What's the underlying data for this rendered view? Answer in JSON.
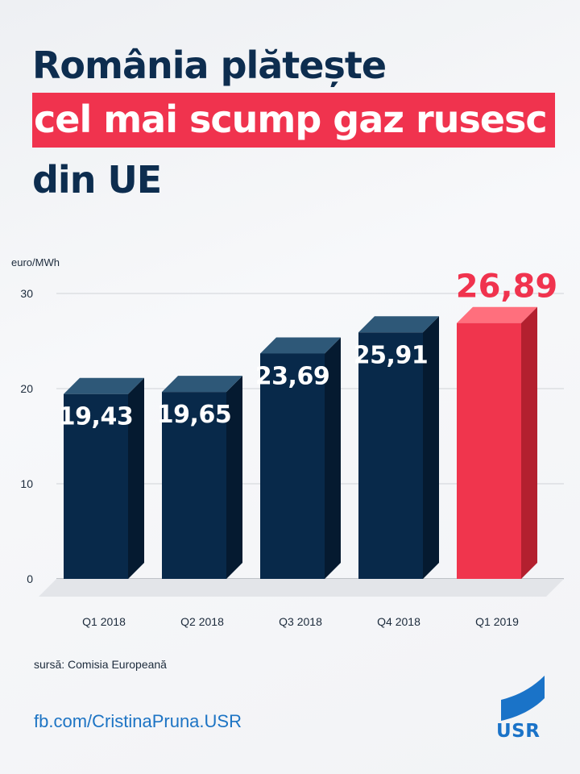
{
  "title": {
    "line1": "România plătește",
    "line2": "cel mai scump gaz rusesc",
    "line3": "din UE"
  },
  "chart_data": {
    "type": "bar",
    "ylabel": "euro/MWh",
    "ylim": [
      0,
      30
    ],
    "yticks": [
      "0",
      "10",
      "20",
      "30"
    ],
    "categories": [
      "Q1 2018",
      "Q2 2018",
      "Q3 2018",
      "Q4 2018",
      "Q1 2019"
    ],
    "values": [
      19.43,
      19.65,
      23.69,
      25.91,
      26.89
    ],
    "value_labels": [
      "19,43",
      "19,65",
      "23,69",
      "25,91",
      "26,89"
    ],
    "highlight_index": 4,
    "grid": true,
    "colors": {
      "bar": "#08294a",
      "bar_side": "#051a30",
      "bar_top": "#2e5878",
      "highlight": "#f0354d",
      "highlight_side": "#b3202f",
      "highlight_top": "#ff6f7d",
      "highlight_label": "#f0334e"
    }
  },
  "source": "sursă: Comisia Europeană",
  "link": "fb.com/CristinaPruna.USR",
  "logo": {
    "text": "USR",
    "icon": "usr-flag-icon",
    "color": "#1a73c8"
  },
  "colors": {
    "title": "#0d2d4f",
    "title_highlight_bg": "#f0334e"
  }
}
